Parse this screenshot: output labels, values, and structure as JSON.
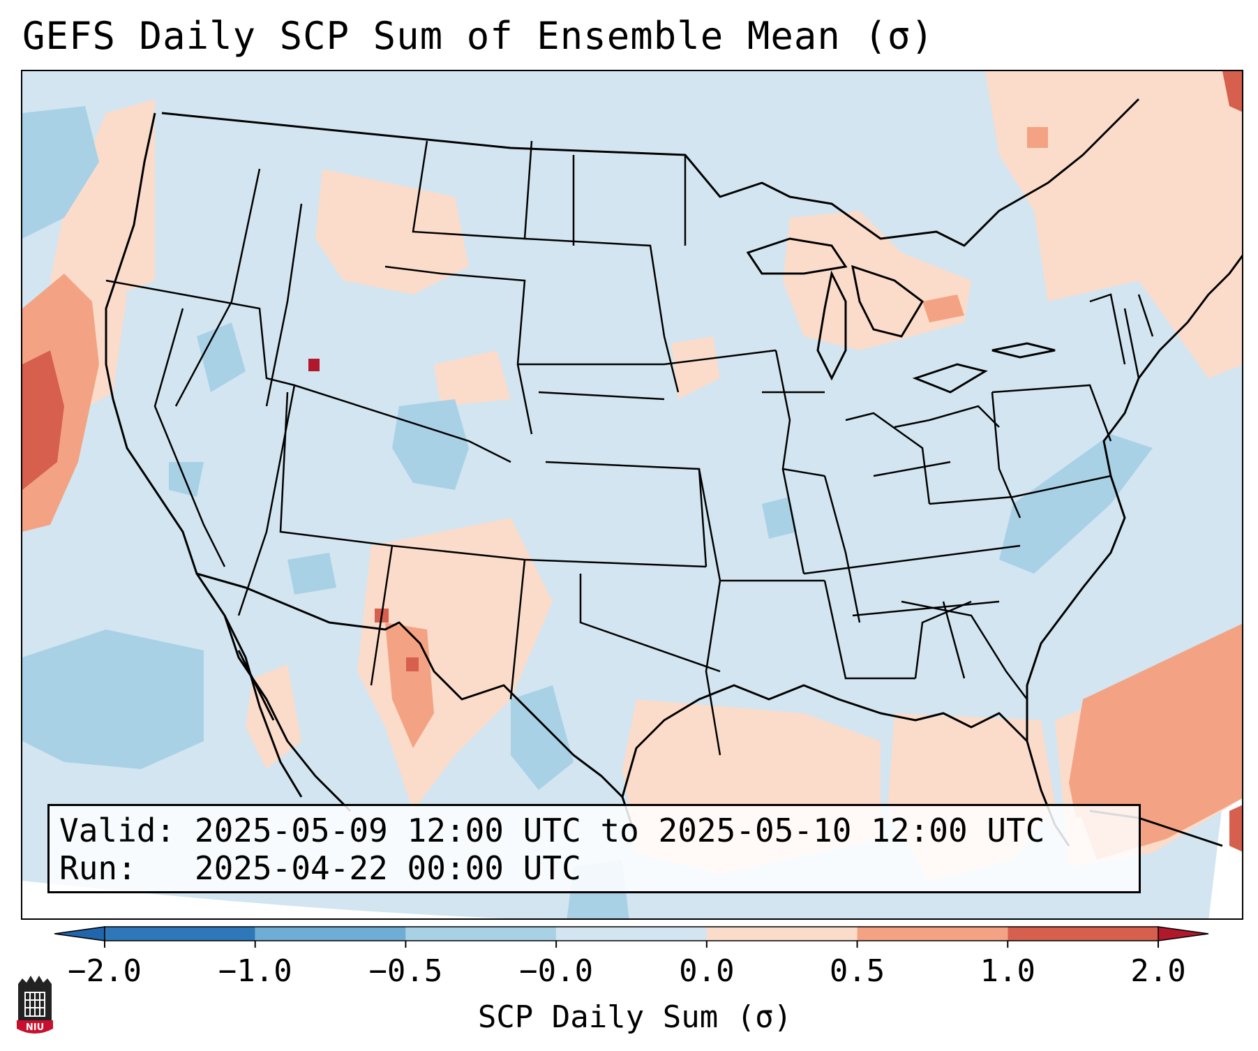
{
  "title": "GEFS Daily SCP Sum of Ensemble Mean (σ)",
  "info": {
    "valid_label": "Valid:",
    "valid_value": "2025-05-09 12:00 UTC to 2025-05-10 12:00 UTC",
    "run_label": "Run:",
    "run_value": "2025-04-22 00:00 UTC"
  },
  "colorbar": {
    "label": "SCP Daily Sum (σ)",
    "ticks": [
      "−2.0",
      "−1.0",
      "−0.5",
      "−0.0",
      "0.0",
      "0.5",
      "1.0",
      "2.0"
    ],
    "bins": [
      {
        "color": "#2e78b9"
      },
      {
        "color": "#6fadd4"
      },
      {
        "color": "#a9d1e6"
      },
      {
        "color": "#d2e5f0"
      },
      {
        "color": "#fbdccb"
      },
      {
        "color": "#f3a383"
      },
      {
        "color": "#d6604d"
      }
    ],
    "extend_low_color": "#2166ac",
    "extend_high_color": "#b2182b"
  },
  "map": {
    "background_color": "#d2e5f0",
    "outline_color": "#000000",
    "region": "Contiguous United States"
  },
  "logo": {
    "text": "NIU",
    "color": "#c8102e"
  }
}
